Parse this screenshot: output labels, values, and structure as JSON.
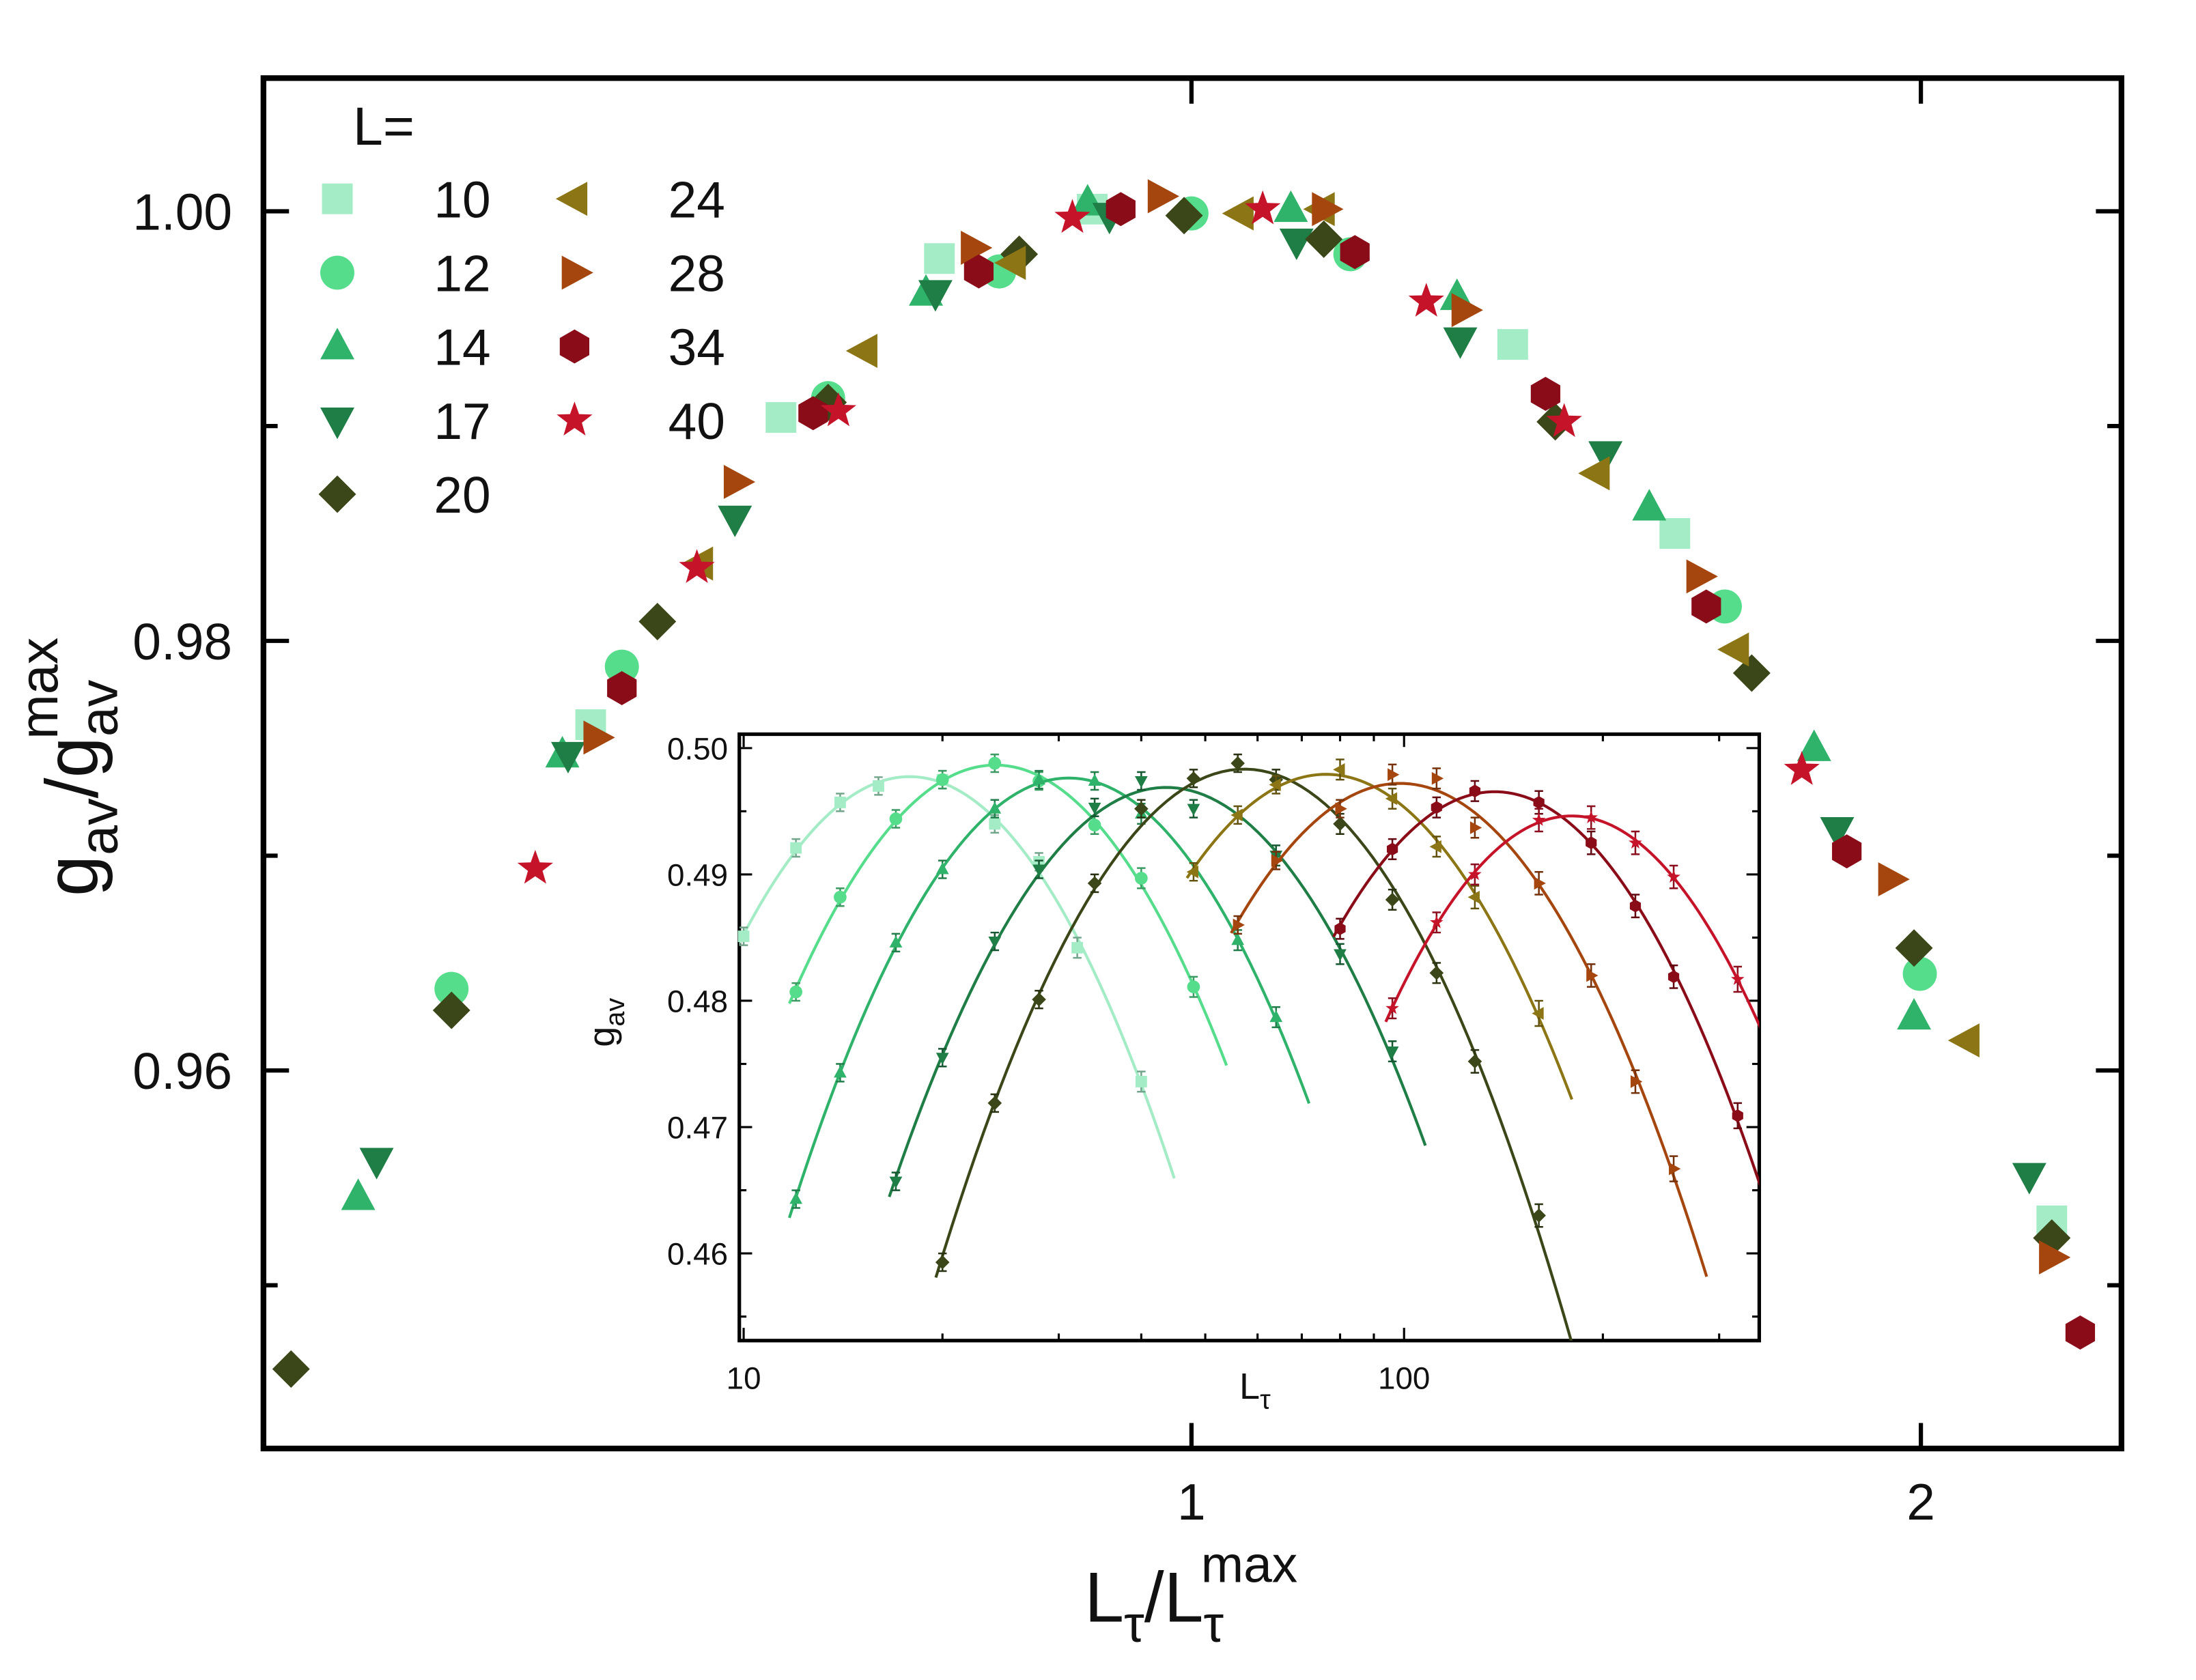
{
  "chart_data": [
    {
      "type": "scatter",
      "xscale": "log",
      "xlabel": [
        "L",
        "τ",
        "/L",
        "τ",
        "max"
      ],
      "ylabel": [
        "g",
        "av",
        "/g",
        "av",
        "max"
      ],
      "legend_title": "L=",
      "xlim": [
        0.414,
        2.42
      ],
      "ylim": [
        0.9424,
        1.0062
      ],
      "xticks": [
        1,
        2
      ],
      "yticks": [
        0.96,
        0.98,
        {
          "value": 1.0,
          "label": "1.00"
        }
      ],
      "yminor_ticks": [
        0.95,
        0.97,
        0.99
      ],
      "series": [
        {
          "name": "10",
          "color": "#a3ecc6",
          "marker": "square",
          "x": [
            0.565,
            0.677,
            0.787,
            0.91,
            1.357,
            1.583,
            2.265
          ],
          "values": [
            0.9761,
            0.9904,
            0.9978,
            1.0001,
            0.9938,
            0.985,
            0.953
          ]
        },
        {
          "name": "12",
          "color": "#55dd8c",
          "marker": "circle",
          "x": [
            0.495,
            0.582,
            0.708,
            0.833,
            1.0,
            1.163,
            1.66,
            1.998
          ],
          "values": [
            0.9638,
            0.9788,
            0.9913,
            0.9972,
            0.9999,
            0.998,
            0.9816,
            0.9645
          ]
        },
        {
          "name": "14",
          "color": "#2fb36a",
          "marker": "triangle-up",
          "x": [
            0.453,
            0.55,
            0.777,
            0.906,
            1.099,
            1.287,
            1.545,
            1.807,
            1.987
          ],
          "values": [
            0.9541,
            0.9747,
            0.9962,
            1.0004,
            1.0001,
            0.996,
            0.9862,
            0.975,
            0.9625
          ]
        },
        {
          "name": "17",
          "color": "#1f7d46",
          "marker": "triangle-down",
          "x": [
            0.461,
            0.553,
            0.648,
            0.784,
            0.925,
            1.105,
            1.291,
            1.482,
            1.847,
            2.217
          ],
          "values": [
            0.9558,
            0.9747,
            0.9857,
            0.9962,
            0.9998,
            0.9986,
            0.994,
            0.9887,
            0.9712,
            0.9551
          ]
        },
        {
          "name": "20",
          "color": "#3b4718",
          "marker": "diamond",
          "x": [
            0.425,
            0.495,
            0.602,
            0.708,
            0.849,
            0.993,
            1.134,
            1.413,
            1.703,
            1.987,
            2.265
          ],
          "values": [
            0.9461,
            0.9628,
            0.9809,
            0.9911,
            0.998,
            0.9998,
            0.9987,
            0.9902,
            0.9785,
            0.9657,
            0.9522
          ]
        },
        {
          "name": "24",
          "color": "#8c7514",
          "marker": "triangle-left",
          "x": [
            0.627,
            0.733,
            0.844,
            1.048,
            1.132,
            1.47,
            1.678,
            2.089
          ],
          "values": [
            0.9836,
            0.9935,
            0.9976,
            0.9999,
            1.0001,
            0.9878,
            0.9796,
            0.9614
          ]
        },
        {
          "name": "28",
          "color": "#a5460e",
          "marker": "triangle-right",
          "x": [
            0.568,
            0.649,
            0.813,
            0.971,
            1.135,
            1.296,
            1.62,
            1.944,
            2.265
          ],
          "values": [
            0.9755,
            0.9874,
            0.9983,
            1.0007,
            1.0001,
            0.9954,
            0.983,
            0.9689,
            0.9513
          ]
        },
        {
          "name": "34",
          "color": "#8a0c18",
          "marker": "hexagon",
          "x": [
            0.582,
            0.698,
            0.817,
            0.935,
            1.168,
            1.4,
            1.631,
            1.864,
            2.327
          ],
          "values": [
            0.9778,
            0.9906,
            0.9972,
            1.0001,
            0.9981,
            0.9915,
            0.9816,
            0.9702,
            0.9478
          ]
        },
        {
          "name": "40",
          "color": "#c5142a",
          "marker": "star",
          "x": [
            0.536,
            0.625,
            0.715,
            0.893,
            1.07,
            1.25,
            1.425,
            1.786
          ],
          "values": [
            0.9694,
            0.9834,
            0.9907,
            0.9997,
            1.0001,
            0.9958,
            0.9902,
            0.974
          ]
        }
      ]
    },
    {
      "type": "scatter",
      "xscale": "log",
      "fit": true,
      "xlabel": [
        "L",
        "τ"
      ],
      "ylabel": [
        "g",
        "av"
      ],
      "xlim": [
        9.85,
        345
      ],
      "ylim": [
        0.4531,
        0.5011
      ],
      "xticks": [
        10,
        100
      ],
      "xminor_ticks": [
        20,
        30,
        40,
        50,
        60,
        70,
        80,
        90,
        200,
        300
      ],
      "yticks": [
        0.46,
        0.47,
        0.48,
        0.49,
        {
          "value": 0.5,
          "label": "0.50"
        }
      ],
      "yminor_ticks": [
        0.455,
        0.465,
        0.475,
        0.485,
        0.495
      ],
      "series": [
        {
          "color": "#a3ecc6",
          "marker": "square",
          "x": [
            10,
            12,
            14,
            16,
            20,
            24,
            28,
            32,
            40
          ],
          "values": [
            0.4851,
            0.4921,
            0.4957,
            0.497,
            0.4975,
            0.494,
            0.491,
            0.4842,
            0.4736
          ],
          "errors": [
            0.0007,
            0.0007,
            0.0007,
            0.0007,
            0.0007,
            0.0007,
            0.0007,
            0.0008,
            0.0008
          ]
        },
        {
          "color": "#55dd8c",
          "marker": "circle",
          "x": [
            12,
            14,
            17,
            20,
            24,
            28,
            34,
            40,
            48
          ],
          "values": [
            0.4807,
            0.4882,
            0.4944,
            0.4975,
            0.4988,
            0.4974,
            0.4939,
            0.4897,
            0.4811
          ],
          "errors": [
            0.0007,
            0.0007,
            0.0007,
            0.0007,
            0.0007,
            0.0007,
            0.0007,
            0.0008,
            0.0008
          ]
        },
        {
          "color": "#2fb36a",
          "marker": "triangle-up",
          "x": [
            12,
            14,
            17,
            20,
            24,
            28,
            34,
            40,
            56,
            64
          ],
          "values": [
            0.4643,
            0.4743,
            0.4846,
            0.4904,
            0.4952,
            0.4975,
            0.4974,
            0.4948,
            0.4848,
            0.4787
          ],
          "errors": [
            0.0007,
            0.0007,
            0.0007,
            0.0007,
            0.0007,
            0.0007,
            0.0007,
            0.0008,
            0.0008,
            0.0008
          ]
        },
        {
          "color": "#1f7d46",
          "marker": "triangle-down",
          "x": [
            17,
            20,
            24,
            28,
            34,
            40,
            48,
            64,
            80,
            96
          ],
          "values": [
            0.4657,
            0.4755,
            0.4847,
            0.4904,
            0.4953,
            0.4974,
            0.4952,
            0.4915,
            0.4837,
            0.476
          ],
          "errors": [
            0.0007,
            0.0007,
            0.0007,
            0.0007,
            0.0007,
            0.0007,
            0.0007,
            0.0008,
            0.0008,
            0.0008
          ]
        },
        {
          "color": "#3b4718",
          "marker": "diamond",
          "x": [
            20,
            24,
            28,
            34,
            40,
            48,
            56,
            64,
            80,
            96,
            112,
            128,
            160
          ],
          "values": [
            0.4593,
            0.4719,
            0.4801,
            0.4893,
            0.4952,
            0.4976,
            0.4988,
            0.4975,
            0.494,
            0.488,
            0.4822,
            0.4752,
            0.463
          ],
          "errors": [
            0.0007,
            0.0007,
            0.0007,
            0.0007,
            0.0007,
            0.0007,
            0.0007,
            0.0008,
            0.0008,
            0.0008,
            0.0008,
            0.0009,
            0.0009
          ]
        },
        {
          "color": "#8c7514",
          "marker": "triangle-left",
          "x": [
            48,
            56,
            64,
            80,
            96,
            112,
            128,
            160
          ],
          "values": [
            0.4902,
            0.4947,
            0.4971,
            0.4983,
            0.496,
            0.4922,
            0.4882,
            0.479
          ],
          "errors": [
            0.0007,
            0.0007,
            0.0007,
            0.0008,
            0.0008,
            0.0008,
            0.0009,
            0.001
          ]
        },
        {
          "color": "#a5460e",
          "marker": "triangle-right",
          "x": [
            56,
            64,
            80,
            96,
            112,
            128,
            160,
            192,
            224,
            256
          ],
          "values": [
            0.486,
            0.4911,
            0.4952,
            0.4979,
            0.4976,
            0.4937,
            0.4893,
            0.482,
            0.4736,
            0.4667
          ],
          "errors": [
            0.0007,
            0.0007,
            0.0007,
            0.0008,
            0.0008,
            0.0008,
            0.0009,
            0.0009,
            0.0009,
            0.001
          ]
        },
        {
          "color": "#8a0c18",
          "marker": "hexagon",
          "x": [
            80,
            96,
            112,
            128,
            160,
            192,
            224,
            256,
            320
          ],
          "values": [
            0.4857,
            0.492,
            0.4953,
            0.4966,
            0.4957,
            0.4925,
            0.4875,
            0.4819,
            0.4709
          ],
          "errors": [
            0.0008,
            0.0008,
            0.0008,
            0.0008,
            0.0009,
            0.0009,
            0.0009,
            0.0009,
            0.001
          ]
        },
        {
          "color": "#c5142a",
          "marker": "star",
          "x": [
            96,
            112,
            128,
            160,
            192,
            224,
            256,
            320
          ],
          "values": [
            0.4794,
            0.4862,
            0.49,
            0.4943,
            0.4945,
            0.4925,
            0.4898,
            0.4817
          ],
          "errors": [
            0.0008,
            0.0008,
            0.0008,
            0.0009,
            0.0009,
            0.0009,
            0.0009,
            0.001
          ]
        }
      ]
    }
  ]
}
